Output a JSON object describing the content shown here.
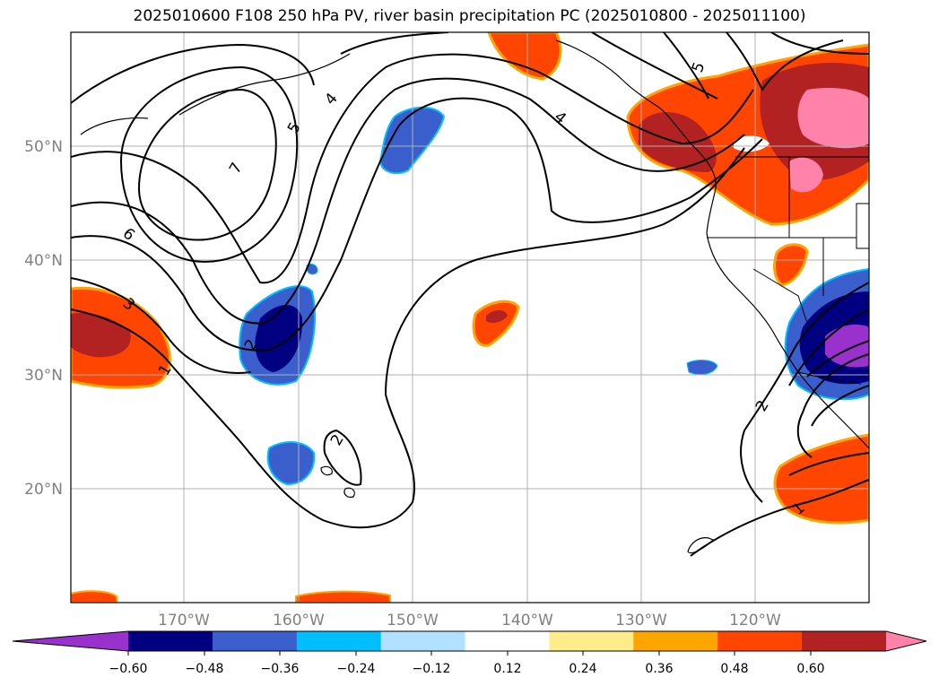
{
  "title": "2025010600 F108 250 hPa PV, river basin precipitation PC (2025010800 - 2025011100)",
  "map": {
    "lat_labels": [
      "50°N",
      "40°N",
      "30°N",
      "20°N"
    ],
    "lon_labels": [
      "170°W",
      "160°W",
      "150°W",
      "140°W",
      "130°W",
      "120°W"
    ],
    "grid": true,
    "label_color": "#808080"
  },
  "contour_labels": [
    "1",
    "2",
    "2",
    "3",
    "4",
    "4",
    "5",
    "5",
    "6",
    "7",
    "1",
    "2"
  ],
  "colorbar": {
    "orientation": "horizontal",
    "extend": "both",
    "tick_labels": [
      "−0.60",
      "−0.48",
      "−0.36",
      "−0.24",
      "−0.12",
      "0.12",
      "0.24",
      "0.36",
      "0.48",
      "0.60"
    ],
    "colors": [
      "#9932cc",
      "#000080",
      "#3a5fcd",
      "#00bfff",
      "#b0e2ff",
      "#ffffff",
      "#ffec8b",
      "#ffa500",
      "#ff4500",
      "#b22222",
      "#ff82ab"
    ]
  }
}
